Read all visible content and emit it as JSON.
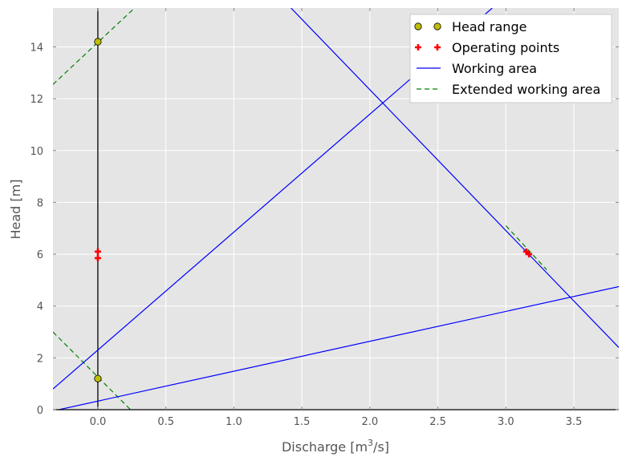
{
  "chart_data": {
    "type": "line",
    "title": "",
    "xlabel": "Discharge [m",
    "xlabel_sup": "3",
    "xlabel_tail": "/s]",
    "ylabel": "Head [m]",
    "xlim": [
      -0.33,
      3.83
    ],
    "ylim": [
      0,
      15.5
    ],
    "xticks": [
      0.0,
      0.5,
      1.0,
      1.5,
      2.0,
      2.5,
      3.0,
      3.5
    ],
    "xtick_labels": [
      "0.0",
      "0.5",
      "1.0",
      "1.5",
      "2.0",
      "2.5",
      "3.0",
      "3.5"
    ],
    "yticks": [
      0,
      2,
      4,
      6,
      8,
      10,
      12,
      14
    ],
    "ytick_labels": [
      "0",
      "2",
      "4",
      "6",
      "8",
      "10",
      "12",
      "14"
    ],
    "grid": true,
    "legend_position": "top-right",
    "vertical_line_x": 0.0,
    "series": [
      {
        "name": "Head range",
        "kind": "marker",
        "marker": "circle",
        "color": "#bfbf00",
        "points": [
          [
            0.0,
            14.2
          ],
          [
            0.0,
            1.2
          ]
        ]
      },
      {
        "name": "Operating points",
        "kind": "marker",
        "marker": "plus",
        "color": "#ff0000",
        "points": [
          [
            0.0,
            6.1
          ],
          [
            0.0,
            5.85
          ],
          [
            3.15,
            6.1
          ],
          [
            3.17,
            6.0
          ]
        ]
      },
      {
        "name": "Working area",
        "kind": "line",
        "dash": "solid",
        "color": "#0000ff",
        "lines": [
          [
            [
              -0.33,
              0.8
            ],
            [
              2.9,
              15.5
            ]
          ],
          [
            [
              1.42,
              15.5
            ],
            [
              3.83,
              2.4
            ]
          ],
          [
            [
              -0.33,
              -0.05
            ],
            [
              3.83,
              4.75
            ]
          ]
        ]
      },
      {
        "name": "Extended working area",
        "kind": "line",
        "dash": "dashed",
        "color": "#008000",
        "lines": [
          [
            [
              -0.33,
              12.55
            ],
            [
              0.27,
              15.5
            ]
          ],
          [
            [
              -0.33,
              3.0
            ],
            [
              0.24,
              0.0
            ]
          ],
          [
            [
              3.0,
              7.1
            ],
            [
              3.3,
              5.4
            ]
          ]
        ]
      }
    ]
  }
}
